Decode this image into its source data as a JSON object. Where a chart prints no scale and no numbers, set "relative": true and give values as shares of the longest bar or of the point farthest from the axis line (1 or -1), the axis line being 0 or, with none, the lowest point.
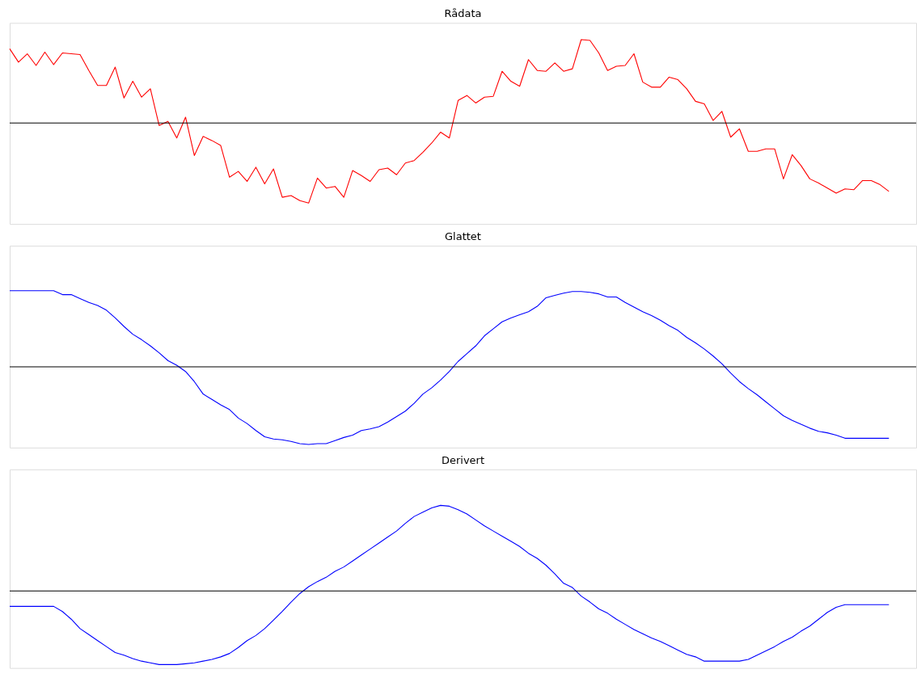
{
  "chart_data": [
    {
      "type": "line",
      "title": "Rådata",
      "relative": true,
      "categories": [
        null,
        null,
        null,
        null,
        null,
        null,
        null,
        null,
        null,
        null,
        null,
        null,
        null,
        null,
        null,
        null,
        null,
        null,
        null,
        null,
        null,
        null,
        null,
        null,
        null,
        null,
        null,
        null,
        null,
        null,
        null,
        null,
        null,
        null,
        null,
        null,
        null,
        null,
        null,
        null,
        null,
        null,
        null,
        null,
        null,
        null,
        null,
        null,
        null,
        null,
        null,
        null,
        null,
        null,
        null,
        null,
        null,
        null,
        null,
        null,
        null,
        null,
        null,
        null,
        null,
        null,
        null,
        null,
        null,
        null,
        null,
        null,
        null,
        null,
        null,
        null,
        null,
        null,
        null,
        null,
        null,
        null,
        null,
        null,
        null,
        null,
        null,
        null,
        null,
        null,
        null,
        null,
        null,
        null,
        null,
        null,
        null,
        null,
        null,
        null,
        null
      ],
      "series": [
        {
          "color": "#ff0000",
          "values": [
            0.89,
            0.73,
            0.83,
            0.69,
            0.85,
            0.7,
            0.84,
            0.83,
            0.82,
            0.63,
            0.45,
            0.45,
            0.67,
            0.3,
            0.5,
            0.31,
            0.41,
            -0.03,
            0.02,
            -0.18,
            0.07,
            -0.39,
            -0.16,
            -0.21,
            -0.27,
            -0.65,
            -0.58,
            -0.7,
            -0.53,
            -0.73,
            -0.55,
            -0.89,
            -0.87,
            -0.93,
            -0.96,
            -0.66,
            -0.78,
            -0.76,
            -0.89,
            -0.57,
            -0.63,
            -0.7,
            -0.56,
            -0.54,
            -0.62,
            -0.48,
            -0.45,
            -0.35,
            -0.24,
            -0.11,
            -0.18,
            0.27,
            0.33,
            0.24,
            0.31,
            0.32,
            0.62,
            0.5,
            0.44,
            0.76,
            0.63,
            0.62,
            0.72,
            0.62,
            0.65,
            1.0,
            0.99,
            0.84,
            0.63,
            0.68,
            0.69,
            0.83,
            0.49,
            0.43,
            0.43,
            0.55,
            0.52,
            0.41,
            0.26,
            0.23,
            0.03,
            0.14,
            -0.17,
            -0.07,
            -0.34,
            -0.34,
            -0.31,
            -0.31,
            -0.67,
            -0.38,
            -0.51,
            -0.67,
            -0.72,
            -0.78,
            -0.84,
            -0.79,
            -0.8,
            -0.69,
            -0.69,
            -0.74,
            -0.82
          ]
        }
      ],
      "legend": false,
      "grid": false,
      "tick_labels": false,
      "marker": "none",
      "line_style": "solid"
    },
    {
      "type": "line",
      "title": "Glattet",
      "relative": true,
      "categories": [
        null,
        null,
        null,
        null,
        null,
        null,
        null,
        null,
        null,
        null,
        null,
        null,
        null,
        null,
        null,
        null,
        null,
        null,
        null,
        null,
        null,
        null,
        null,
        null,
        null,
        null,
        null,
        null,
        null,
        null,
        null,
        null,
        null,
        null,
        null,
        null,
        null,
        null,
        null,
        null,
        null,
        null,
        null,
        null,
        null,
        null,
        null,
        null,
        null,
        null,
        null,
        null,
        null,
        null,
        null,
        null,
        null,
        null,
        null,
        null,
        null,
        null,
        null,
        null,
        null,
        null,
        null,
        null,
        null,
        null,
        null,
        null,
        null,
        null,
        null,
        null,
        null,
        null,
        null,
        null,
        null,
        null,
        null,
        null,
        null,
        null,
        null,
        null,
        null,
        null,
        null,
        null,
        null,
        null,
        null,
        null,
        null,
        null,
        null,
        null,
        null
      ],
      "series": [
        {
          "color": "#0000ff",
          "values": [
            0.98,
            0.98,
            0.98,
            0.98,
            0.98,
            0.98,
            0.93,
            0.93,
            0.88,
            0.83,
            0.79,
            0.73,
            0.63,
            0.52,
            0.42,
            0.35,
            0.27,
            0.18,
            0.08,
            0.02,
            -0.06,
            -0.19,
            -0.35,
            -0.42,
            -0.49,
            -0.55,
            -0.66,
            -0.73,
            -0.82,
            -0.9,
            -0.93,
            -0.94,
            -0.96,
            -0.99,
            -1.0,
            -0.99,
            -0.99,
            -0.95,
            -0.91,
            -0.88,
            -0.82,
            -0.8,
            -0.77,
            -0.71,
            -0.64,
            -0.57,
            -0.47,
            -0.35,
            -0.27,
            -0.17,
            -0.06,
            0.07,
            0.17,
            0.27,
            0.4,
            0.49,
            0.58,
            0.63,
            0.67,
            0.71,
            0.78,
            0.89,
            0.92,
            0.95,
            0.97,
            0.97,
            0.96,
            0.94,
            0.9,
            0.9,
            0.83,
            0.77,
            0.71,
            0.66,
            0.6,
            0.53,
            0.47,
            0.38,
            0.31,
            0.23,
            0.14,
            0.04,
            -0.08,
            -0.19,
            -0.28,
            -0.36,
            -0.45,
            -0.54,
            -0.63,
            -0.69,
            -0.74,
            -0.79,
            -0.83,
            -0.85,
            -0.88,
            -0.92,
            -0.92,
            -0.92,
            -0.92,
            -0.92,
            -0.92
          ]
        }
      ],
      "legend": false,
      "grid": false,
      "tick_labels": false,
      "marker": "none",
      "line_style": "solid"
    },
    {
      "type": "line",
      "title": "Derivert",
      "relative": true,
      "categories": [
        null,
        null,
        null,
        null,
        null,
        null,
        null,
        null,
        null,
        null,
        null,
        null,
        null,
        null,
        null,
        null,
        null,
        null,
        null,
        null,
        null,
        null,
        null,
        null,
        null,
        null,
        null,
        null,
        null,
        null,
        null,
        null,
        null,
        null,
        null,
        null,
        null,
        null,
        null,
        null,
        null,
        null,
        null,
        null,
        null,
        null,
        null,
        null,
        null,
        null,
        null,
        null,
        null,
        null,
        null,
        null,
        null,
        null,
        null,
        null,
        null,
        null,
        null,
        null,
        null,
        null,
        null,
        null,
        null,
        null,
        null,
        null,
        null,
        null,
        null,
        null,
        null,
        null,
        null,
        null,
        null,
        null,
        null,
        null,
        null,
        null,
        null,
        null,
        null,
        null,
        null,
        null,
        null,
        null,
        null,
        null,
        null,
        null,
        null,
        null,
        null
      ],
      "series": [
        {
          "color": "#0000ff",
          "values": [
            -0.18,
            -0.18,
            -0.18,
            -0.18,
            -0.18,
            -0.18,
            -0.24,
            -0.33,
            -0.44,
            -0.51,
            -0.58,
            -0.65,
            -0.72,
            -0.75,
            -0.79,
            -0.82,
            -0.84,
            -0.86,
            -0.86,
            -0.86,
            -0.85,
            -0.84,
            -0.82,
            -0.8,
            -0.77,
            -0.73,
            -0.66,
            -0.58,
            -0.52,
            -0.44,
            -0.34,
            -0.24,
            -0.13,
            -0.03,
            0.05,
            0.11,
            0.16,
            0.23,
            0.28,
            0.35,
            0.42,
            0.49,
            0.56,
            0.63,
            0.7,
            0.79,
            0.87,
            0.92,
            0.97,
            1.0,
            0.99,
            0.95,
            0.9,
            0.83,
            0.76,
            0.7,
            0.64,
            0.58,
            0.52,
            0.44,
            0.38,
            0.3,
            0.2,
            0.09,
            0.04,
            -0.06,
            -0.13,
            -0.21,
            -0.26,
            -0.33,
            -0.39,
            -0.45,
            -0.5,
            -0.55,
            -0.59,
            -0.64,
            -0.69,
            -0.74,
            -0.77,
            -0.82,
            -0.82,
            -0.82,
            -0.82,
            -0.82,
            -0.8,
            -0.75,
            -0.7,
            -0.65,
            -0.59,
            -0.54,
            -0.47,
            -0.41,
            -0.33,
            -0.25,
            -0.19,
            -0.16,
            -0.16,
            -0.16,
            -0.16,
            -0.16,
            -0.16
          ]
        }
      ],
      "legend": false,
      "grid": false,
      "tick_labels": false,
      "marker": "none",
      "line_style": "solid"
    }
  ]
}
